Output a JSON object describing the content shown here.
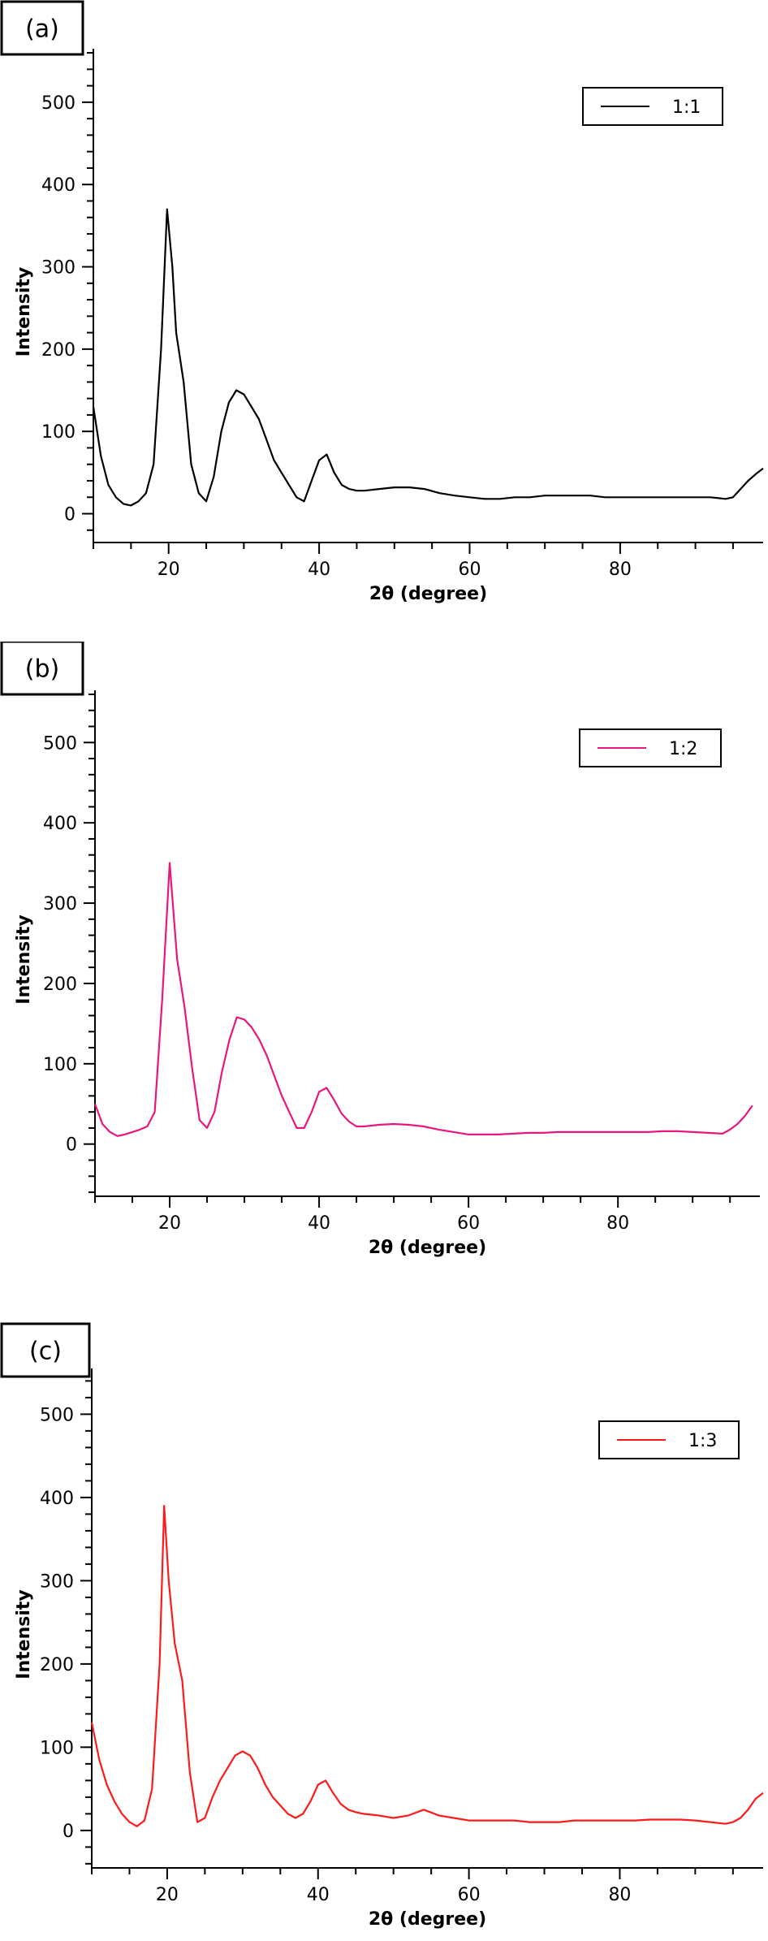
{
  "chart_data": [
    {
      "type": "line",
      "panel_tag": "(a)",
      "xlabel": "2θ (degree)",
      "ylabel": "Intensity",
      "xlim": [
        10,
        99
      ],
      "ylim": [
        -35,
        565
      ],
      "x_ticks": [
        20,
        40,
        60,
        80
      ],
      "y_ticks": [
        0,
        100,
        200,
        300,
        400,
        500
      ],
      "legend_position": "top-right",
      "series": [
        {
          "name": "1:1",
          "color": "#000000",
          "x": [
            10,
            11,
            12,
            13,
            14,
            15,
            16,
            17,
            18,
            19,
            19.8,
            20.5,
            21,
            22,
            23,
            24,
            25,
            26,
            27,
            28,
            29,
            30,
            31,
            32,
            33,
            34,
            35,
            36,
            37,
            38,
            39,
            40,
            41,
            42,
            43,
            44,
            45,
            46,
            48,
            50,
            52,
            54,
            56,
            58,
            60,
            62,
            64,
            66,
            68,
            70,
            72,
            74,
            76,
            78,
            80,
            82,
            84,
            86,
            88,
            90,
            92,
            94,
            95,
            96,
            97,
            98,
            99
          ],
          "y": [
            130,
            70,
            35,
            20,
            12,
            10,
            15,
            25,
            60,
            200,
            370,
            300,
            220,
            160,
            60,
            25,
            15,
            45,
            100,
            135,
            150,
            145,
            130,
            115,
            90,
            65,
            50,
            35,
            20,
            15,
            40,
            65,
            72,
            50,
            35,
            30,
            28,
            28,
            30,
            32,
            32,
            30,
            25,
            22,
            20,
            18,
            18,
            20,
            20,
            22,
            22,
            22,
            22,
            20,
            20,
            20,
            20,
            20,
            20,
            20,
            20,
            18,
            20,
            30,
            40,
            48,
            55
          ]
        }
      ]
    },
    {
      "type": "line",
      "panel_tag": "(b)",
      "xlabel": "2θ (degree)",
      "ylabel": "Intensity",
      "xlim": [
        10,
        99
      ],
      "ylim": [
        -65,
        565
      ],
      "x_ticks": [
        20,
        40,
        60,
        80
      ],
      "y_ticks": [
        0,
        100,
        200,
        300,
        400,
        500
      ],
      "legend_position": "top-right",
      "series": [
        {
          "name": "1:2",
          "color": "#e8177f",
          "x": [
            10,
            11,
            12,
            13,
            14,
            15,
            16,
            17,
            18,
            19,
            20,
            21,
            22,
            23,
            24,
            25,
            26,
            27,
            28,
            29,
            30,
            31,
            32,
            33,
            34,
            35,
            36,
            37,
            38,
            39,
            40,
            41,
            42,
            43,
            44,
            45,
            46,
            48,
            50,
            52,
            54,
            56,
            58,
            60,
            62,
            64,
            66,
            68,
            70,
            72,
            74,
            76,
            78,
            80,
            82,
            84,
            86,
            88,
            90,
            92,
            94,
            95,
            96,
            97,
            98
          ],
          "y": [
            50,
            25,
            15,
            10,
            12,
            15,
            18,
            22,
            40,
            180,
            350,
            230,
            170,
            95,
            30,
            20,
            40,
            90,
            130,
            158,
            155,
            145,
            130,
            110,
            85,
            60,
            40,
            20,
            20,
            40,
            65,
            70,
            55,
            38,
            28,
            22,
            22,
            24,
            25,
            24,
            22,
            18,
            15,
            12,
            12,
            12,
            13,
            14,
            14,
            15,
            15,
            15,
            15,
            15,
            15,
            15,
            16,
            16,
            15,
            14,
            13,
            18,
            25,
            35,
            48
          ]
        }
      ]
    },
    {
      "type": "line",
      "panel_tag": "(c)",
      "xlabel": "2θ (degree)",
      "ylabel": "Intensity",
      "xlim": [
        10,
        99
      ],
      "ylim": [
        -45,
        555
      ],
      "x_ticks": [
        20,
        40,
        60,
        80
      ],
      "y_ticks": [
        0,
        100,
        200,
        300,
        400,
        500
      ],
      "legend_position": "top-right",
      "series": [
        {
          "name": "1:3",
          "color": "#ff1a1a",
          "x": [
            10,
            11,
            12,
            13,
            14,
            15,
            16,
            17,
            18,
            19,
            19.6,
            20.2,
            21,
            22,
            23,
            24,
            25,
            26,
            27,
            28,
            29,
            30,
            31,
            32,
            33,
            34,
            35,
            36,
            37,
            38,
            39,
            40,
            41,
            42,
            43,
            44,
            45,
            46,
            48,
            50,
            52,
            54,
            56,
            58,
            60,
            62,
            64,
            66,
            68,
            70,
            72,
            74,
            76,
            78,
            80,
            82,
            84,
            86,
            88,
            90,
            92,
            94,
            95,
            96,
            97,
            98,
            99
          ],
          "y": [
            130,
            85,
            55,
            35,
            20,
            10,
            5,
            12,
            50,
            200,
            390,
            300,
            225,
            180,
            70,
            10,
            15,
            40,
            60,
            75,
            90,
            95,
            90,
            75,
            55,
            40,
            30,
            20,
            15,
            20,
            35,
            55,
            60,
            45,
            32,
            25,
            22,
            20,
            18,
            15,
            18,
            25,
            18,
            15,
            12,
            12,
            12,
            12,
            10,
            10,
            10,
            12,
            12,
            12,
            12,
            12,
            13,
            13,
            13,
            12,
            10,
            8,
            10,
            15,
            25,
            38,
            45
          ]
        }
      ]
    }
  ]
}
